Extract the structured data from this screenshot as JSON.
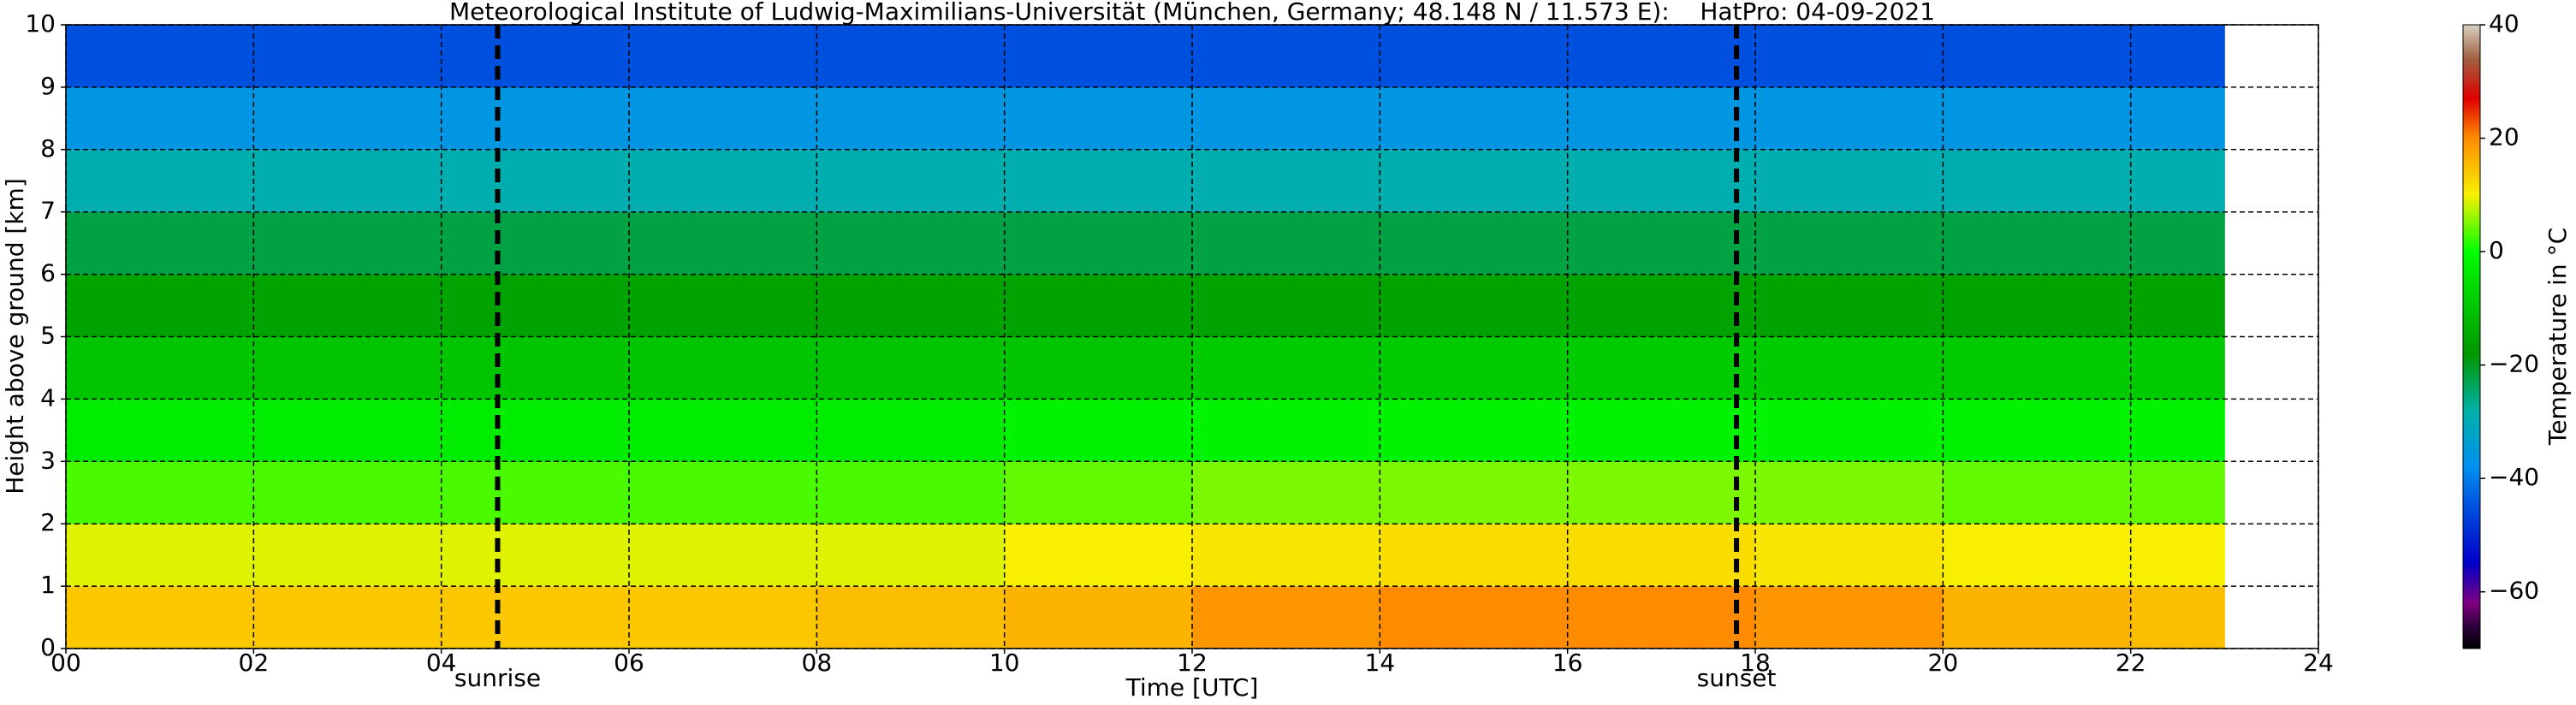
{
  "chart_data": {
    "type": "heatmap",
    "title": "Meteorological Institute of Ludwig-Maximilians-Universität (München, Germany; 48.148 N / 11.573 E):    HatPro: 04-09-2021",
    "x_label": "Time [UTC]",
    "y_label": "Height above ground [km]",
    "colorbar_label": "Temperature in °C",
    "x_edges": [
      0,
      2,
      4,
      6,
      8,
      10,
      12,
      14,
      16,
      18,
      20,
      22,
      23
    ],
    "y_edges": [
      0,
      1,
      2,
      3,
      4,
      5,
      6,
      7,
      8,
      9,
      10
    ],
    "z": [
      [
        14,
        14,
        14,
        14,
        15,
        16,
        19,
        20,
        20,
        19,
        16,
        15
      ],
      [
        9,
        9,
        9,
        9,
        9,
        10,
        11,
        12,
        12,
        11,
        10,
        10
      ],
      [
        3,
        3,
        3,
        3,
        3,
        4,
        5,
        5,
        5,
        5,
        4,
        4
      ],
      [
        -3,
        -3,
        -3,
        -3,
        -3,
        -2,
        -2,
        -2,
        -2,
        -2,
        -2,
        -2
      ],
      [
        -10,
        -10,
        -10,
        -10,
        -10,
        -10,
        -9,
        -9,
        -9,
        -9,
        -9,
        -9
      ],
      [
        -16,
        -16,
        -16,
        -16,
        -16,
        -16,
        -16,
        -16,
        -16,
        -16,
        -16,
        -16
      ],
      [
        -22,
        -22,
        -22,
        -22,
        -22,
        -22,
        -22,
        -22,
        -22,
        -22,
        -22,
        -22
      ],
      [
        -29,
        -29,
        -29,
        -29,
        -29,
        -29,
        -29,
        -29,
        -29,
        -29,
        -29,
        -29
      ],
      [
        -36,
        -36,
        -36,
        -36,
        -36,
        -36,
        -36,
        -36,
        -36,
        -36,
        -36,
        -36
      ],
      [
        -45,
        -45,
        -45,
        -45,
        -45,
        -45,
        -45,
        -45,
        -45,
        -45,
        -45,
        -45
      ]
    ],
    "xlim": [
      0,
      24
    ],
    "ylim": [
      0,
      10
    ],
    "xticks": [
      {
        "value": 0,
        "label": "00"
      },
      {
        "value": 2,
        "label": "02"
      },
      {
        "value": 4,
        "label": "04"
      },
      {
        "value": 6,
        "label": "06"
      },
      {
        "value": 8,
        "label": "08"
      },
      10,
      12,
      14,
      16,
      18,
      20,
      22,
      24
    ],
    "yticks": [
      0,
      1,
      2,
      3,
      4,
      5,
      6,
      7,
      8,
      9,
      10
    ],
    "clim": [
      -70,
      40
    ],
    "cticks": [
      {
        "value": -60,
        "label": "−60"
      },
      {
        "value": -40,
        "label": "−40"
      },
      {
        "value": -20,
        "label": "−20"
      },
      0,
      20,
      40
    ],
    "colormap": [
      {
        "value": -70,
        "color": "#000000"
      },
      {
        "value": -66,
        "color": "#300040"
      },
      {
        "value": -62,
        "color": "#800080"
      },
      {
        "value": -55,
        "color": "#0000c8"
      },
      {
        "value": -45,
        "color": "#0050e0"
      },
      {
        "value": -38,
        "color": "#0090f0"
      },
      {
        "value": -28,
        "color": "#00b0a8"
      },
      {
        "value": -18,
        "color": "#009800"
      },
      {
        "value": -8,
        "color": "#00d000"
      },
      {
        "value": 0,
        "color": "#00ff00"
      },
      {
        "value": 10,
        "color": "#f8f000"
      },
      {
        "value": 20,
        "color": "#ff8c00"
      },
      {
        "value": 27,
        "color": "#e00000"
      },
      {
        "value": 34,
        "color": "#a06040"
      },
      {
        "value": 40,
        "color": "#d8d0c0"
      }
    ],
    "grid": true,
    "annotations": [
      {
        "label": "sunrise",
        "x": 4.6
      },
      {
        "label": "sunset",
        "x": 17.8
      }
    ]
  }
}
